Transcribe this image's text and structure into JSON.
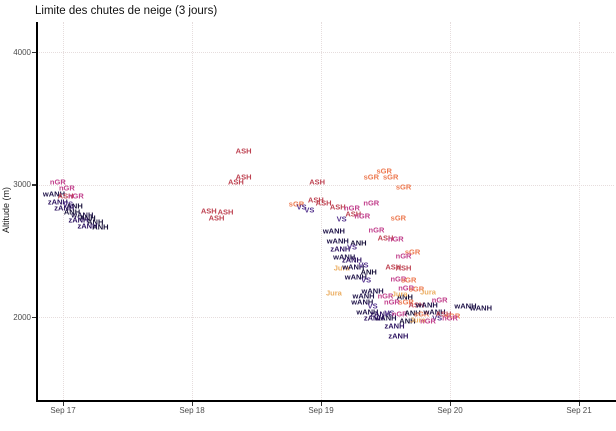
{
  "title": "Limite des chutes de neige (3 jours)",
  "chart_data": {
    "type": "scatter",
    "render_style": "text-labels-as-points",
    "title": "Limite des chutes de neige (3 jours)",
    "xlabel": "",
    "ylabel": "Altitude (m)",
    "x_ticks": [
      {
        "day": 17,
        "label": "Sep 17"
      },
      {
        "day": 18,
        "label": "Sep 18"
      },
      {
        "day": 19,
        "label": "Sep 19"
      },
      {
        "day": 20,
        "label": "Sep 20"
      },
      {
        "day": 21,
        "label": "Sep 21"
      }
    ],
    "y_ticks": [
      {
        "alt": 2000,
        "label": "2000"
      },
      {
        "alt": 3000,
        "label": "3000"
      },
      {
        "alt": 4000,
        "label": "4000"
      }
    ],
    "xlim_days": [
      16.73,
      21.28
    ],
    "ylim": [
      1150,
      4160
    ],
    "grid": "dotted light gray, horizontal at y ticks and vertical at day ticks",
    "legend_position": "none",
    "regions": [
      {
        "key": "ASH",
        "color": "#be4251"
      },
      {
        "key": "nGR",
        "color": "#c2418d"
      },
      {
        "key": "sGR",
        "color": "#ed7a51"
      },
      {
        "key": "VS",
        "color": "#54338e"
      },
      {
        "key": "Jura",
        "color": "#ebae62"
      },
      {
        "key": "wANH",
        "color": "#1d1147"
      },
      {
        "key": "zANH",
        "color": "#2b115f"
      },
      {
        "key": "ANH",
        "color": "#150e37"
      }
    ],
    "points_format": "[day_decimal, altitude_m, region_label]",
    "points": [
      [
        16.96,
        3020,
        "nGR"
      ],
      [
        17.03,
        2970,
        "nGR"
      ],
      [
        16.93,
        2930,
        "wANH"
      ],
      [
        17.02,
        2910,
        "ASH"
      ],
      [
        17.1,
        2910,
        "nGR"
      ],
      [
        16.96,
        2870,
        "zANH"
      ],
      [
        17.04,
        2850,
        "VS"
      ],
      [
        17.09,
        2840,
        "ANH"
      ],
      [
        17.01,
        2820,
        "zANH"
      ],
      [
        17.07,
        2790,
        "ANH"
      ],
      [
        17.15,
        2770,
        "wANH"
      ],
      [
        17.19,
        2750,
        "ANH"
      ],
      [
        17.12,
        2730,
        "zANH"
      ],
      [
        17.25,
        2720,
        "ANH"
      ],
      [
        17.19,
        2690,
        "zANH"
      ],
      [
        17.29,
        2680,
        "ANH"
      ],
      [
        18.4,
        3250,
        "ASH"
      ],
      [
        18.4,
        3060,
        "ASH"
      ],
      [
        18.34,
        3020,
        "ASH"
      ],
      [
        18.13,
        2800,
        "ASH"
      ],
      [
        18.26,
        2790,
        "ASH"
      ],
      [
        18.19,
        2750,
        "ASH"
      ],
      [
        18.97,
        3020,
        "ASH"
      ],
      [
        19.39,
        3060,
        "sGR"
      ],
      [
        19.49,
        3100,
        "sGR"
      ],
      [
        19.54,
        3060,
        "sGR"
      ],
      [
        19.64,
        2980,
        "sGR"
      ],
      [
        18.81,
        2850,
        "sGR"
      ],
      [
        18.85,
        2830,
        "VS"
      ],
      [
        18.91,
        2810,
        "VS"
      ],
      [
        18.96,
        2880,
        "ASH"
      ],
      [
        19.02,
        2860,
        "ASH"
      ],
      [
        19.13,
        2830,
        "ASH"
      ],
      [
        19.24,
        2820,
        "nGR"
      ],
      [
        19.39,
        2860,
        "nGR"
      ],
      [
        19.16,
        2740,
        "VS"
      ],
      [
        19.25,
        2780,
        "ASH"
      ],
      [
        19.32,
        2760,
        "nGR"
      ],
      [
        19.6,
        2750,
        "sGR"
      ],
      [
        19.43,
        2660,
        "nGR"
      ],
      [
        19.5,
        2600,
        "ASH"
      ],
      [
        19.58,
        2590,
        "nGR"
      ],
      [
        19.1,
        2650,
        "wANH"
      ],
      [
        19.29,
        2560,
        "ANH"
      ],
      [
        19.13,
        2570,
        "wANH"
      ],
      [
        19.15,
        2510,
        "zANH"
      ],
      [
        19.24,
        2530,
        "VS"
      ],
      [
        19.18,
        2450,
        "wANH"
      ],
      [
        19.24,
        2430,
        "zANH"
      ],
      [
        19.56,
        2380,
        "ASH"
      ],
      [
        19.71,
        2490,
        "sGR"
      ],
      [
        19.64,
        2460,
        "nGR"
      ],
      [
        19.64,
        2370,
        "ASH"
      ],
      [
        19.16,
        2370,
        "Jura"
      ],
      [
        19.25,
        2380,
        "wANH"
      ],
      [
        19.33,
        2390,
        "VS"
      ],
      [
        19.37,
        2340,
        "ANH"
      ],
      [
        19.1,
        2180,
        "Jura"
      ],
      [
        19.27,
        2300,
        "wANH"
      ],
      [
        19.35,
        2280,
        "VS"
      ],
      [
        19.6,
        2290,
        "nGR"
      ],
      [
        19.68,
        2280,
        "sGR"
      ],
      [
        19.66,
        2220,
        "nGR"
      ],
      [
        19.74,
        2210,
        "sGR"
      ],
      [
        19.83,
        2190,
        "Jura"
      ],
      [
        19.65,
        2150,
        "ANH"
      ],
      [
        19.4,
        2200,
        "wANH"
      ],
      [
        19.33,
        2160,
        "wANH"
      ],
      [
        19.5,
        2160,
        "nGR"
      ],
      [
        19.61,
        2170,
        "Jura"
      ],
      [
        19.32,
        2110,
        "wANH"
      ],
      [
        19.4,
        2080,
        "VS"
      ],
      [
        19.55,
        2110,
        "nGR"
      ],
      [
        19.66,
        2110,
        "sGR"
      ],
      [
        19.74,
        2090,
        "ASH"
      ],
      [
        19.82,
        2090,
        "wANH"
      ],
      [
        19.92,
        2130,
        "nGR"
      ],
      [
        19.36,
        2040,
        "wANH"
      ],
      [
        19.46,
        2020,
        "zANH"
      ],
      [
        19.53,
        2030,
        "VS"
      ],
      [
        19.61,
        2020,
        "nGR"
      ],
      [
        19.71,
        2030,
        "ANH"
      ],
      [
        19.78,
        2020,
        "sGR"
      ],
      [
        19.88,
        2040,
        "wANH"
      ],
      [
        19.95,
        2020,
        "ASH"
      ],
      [
        20.02,
        2010,
        "sGR"
      ],
      [
        19.9,
        1990,
        "VS"
      ],
      [
        20.0,
        1990,
        "nGR"
      ],
      [
        20.12,
        2080,
        "wANH"
      ],
      [
        20.24,
        2070,
        "wANH"
      ],
      [
        19.57,
        1930,
        "zANH"
      ],
      [
        19.6,
        1860,
        "zANH"
      ],
      [
        19.5,
        1990,
        "wANH"
      ],
      [
        19.67,
        1970,
        "ANH"
      ],
      [
        19.75,
        1980,
        "Jura"
      ],
      [
        19.83,
        1970,
        "nGR"
      ],
      [
        19.41,
        1990,
        "zANH"
      ]
    ]
  }
}
